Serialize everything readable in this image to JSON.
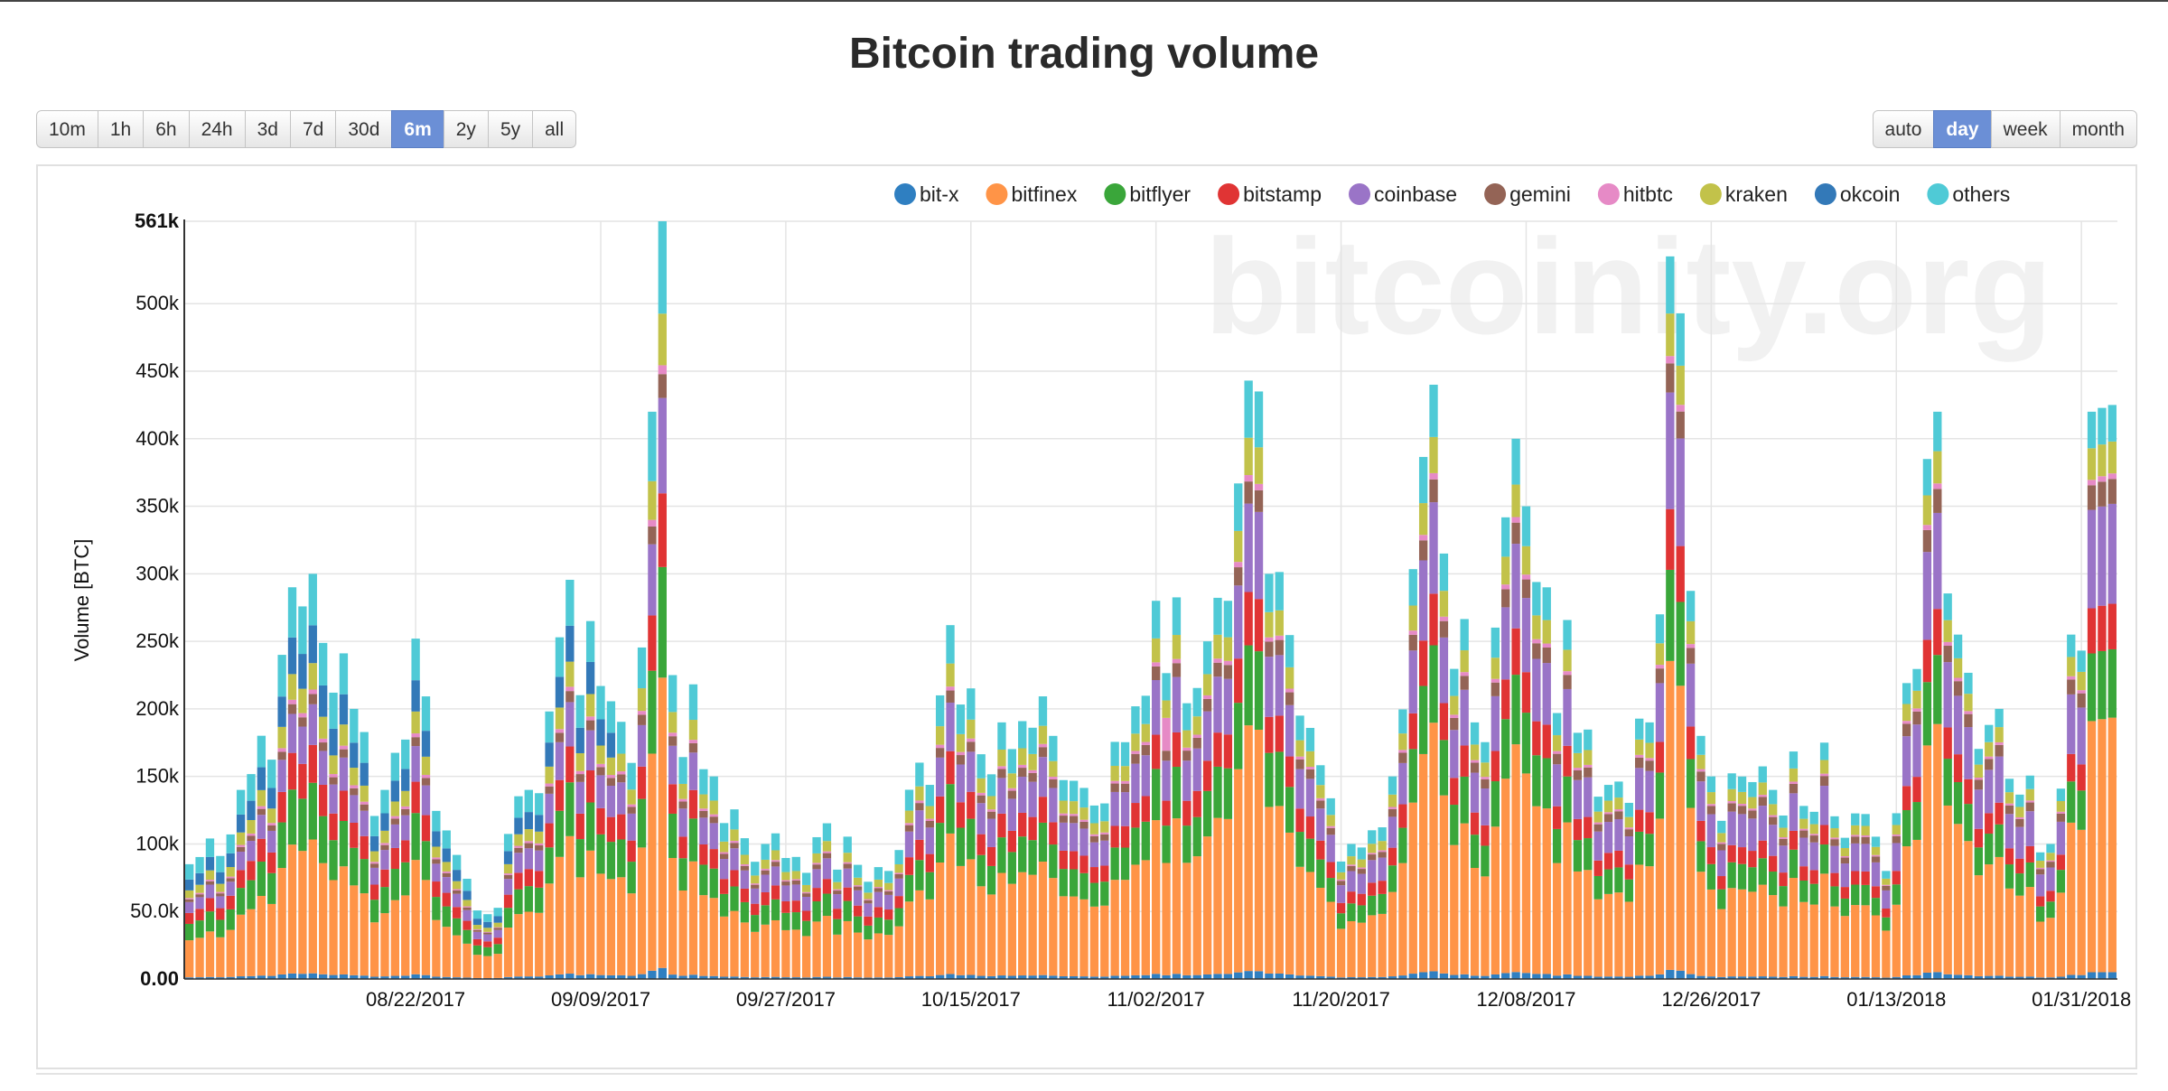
{
  "page": {
    "title": "Bitcoin trading volume"
  },
  "range_buttons": [
    {
      "label": "10m"
    },
    {
      "label": "1h"
    },
    {
      "label": "6h"
    },
    {
      "label": "24h"
    },
    {
      "label": "3d"
    },
    {
      "label": "7d"
    },
    {
      "label": "30d"
    },
    {
      "label": "6m",
      "active": true
    },
    {
      "label": "2y"
    },
    {
      "label": "5y"
    },
    {
      "label": "all"
    }
  ],
  "grouping_buttons": [
    {
      "label": "auto"
    },
    {
      "label": "day",
      "active": true
    },
    {
      "label": "week"
    },
    {
      "label": "month"
    }
  ],
  "watermark": "bitcoinity.org",
  "chart_data": {
    "type": "bar",
    "stacked": true,
    "ylabel": "Volume [BTC]",
    "ylim": [
      0,
      561000
    ],
    "yticks": [
      {
        "value": 0,
        "label": "0.00"
      },
      {
        "value": 50000,
        "label": "50.0k"
      },
      {
        "value": 100000,
        "label": "100k"
      },
      {
        "value": 150000,
        "label": "150k"
      },
      {
        "value": 200000,
        "label": "200k"
      },
      {
        "value": 250000,
        "label": "250k"
      },
      {
        "value": 300000,
        "label": "300k"
      },
      {
        "value": 350000,
        "label": "350k"
      },
      {
        "value": 400000,
        "label": "400k"
      },
      {
        "value": 450000,
        "label": "450k"
      },
      {
        "value": 500000,
        "label": "500k"
      },
      {
        "value": 561000,
        "label": "561k"
      }
    ],
    "x_start": "2017-07-31",
    "x_end": "2018-02-03",
    "xticks": [
      {
        "date": "2017-08-22",
        "label": "08/22/2017"
      },
      {
        "date": "2017-09-09",
        "label": "09/09/2017"
      },
      {
        "date": "2017-09-27",
        "label": "09/27/2017"
      },
      {
        "date": "2017-10-15",
        "label": "10/15/2017"
      },
      {
        "date": "2017-11-02",
        "label": "11/02/2017"
      },
      {
        "date": "2017-11-20",
        "label": "11/20/2017"
      },
      {
        "date": "2017-12-08",
        "label": "12/08/2017"
      },
      {
        "date": "2017-12-26",
        "label": "12/26/2017"
      },
      {
        "date": "2018-01-13",
        "label": "01/13/2018"
      },
      {
        "date": "2018-01-31",
        "label": "01/31/2018"
      }
    ],
    "legend_position": "top-right",
    "series": [
      {
        "name": "bit-x",
        "color": "#2f7fc1"
      },
      {
        "name": "bitfinex",
        "color": "#ff9447"
      },
      {
        "name": "bitflyer",
        "color": "#3aa63a"
      },
      {
        "name": "bitstamp",
        "color": "#e03434"
      },
      {
        "name": "coinbase",
        "color": "#9a74c7"
      },
      {
        "name": "gemini",
        "color": "#946456"
      },
      {
        "name": "hitbtc",
        "color": "#e68ac6"
      },
      {
        "name": "kraken",
        "color": "#c2c24a"
      },
      {
        "name": "okcoin",
        "color": "#3379b8"
      },
      {
        "name": "others",
        "color": "#4fcad6"
      }
    ],
    "daily_totals": [
      {
        "date": "2017-07-31",
        "total": 85000
      },
      {
        "date": "2017-08-05",
        "total": 140000
      },
      {
        "date": "2017-08-09",
        "total": 240000
      },
      {
        "date": "2017-08-12",
        "total": 300000
      },
      {
        "date": "2017-08-16",
        "total": 200000
      },
      {
        "date": "2017-08-19",
        "total": 140000
      },
      {
        "date": "2017-08-22",
        "total": 252000
      },
      {
        "date": "2017-08-25",
        "total": 110000
      },
      {
        "date": "2017-08-29",
        "total": 48000
      },
      {
        "date": "2017-09-02",
        "total": 140000
      },
      {
        "date": "2017-09-05",
        "total": 253000
      },
      {
        "date": "2017-09-08",
        "total": 265000
      },
      {
        "date": "2017-09-12",
        "total": 160000
      },
      {
        "date": "2017-09-14",
        "total": 420000
      },
      {
        "date": "2017-09-15",
        "total": 561000
      },
      {
        "date": "2017-09-16",
        "total": 225000
      },
      {
        "date": "2017-09-20",
        "total": 150000
      },
      {
        "date": "2017-09-25",
        "total": 100000
      },
      {
        "date": "2017-09-30",
        "total": 105000
      },
      {
        "date": "2017-10-07",
        "total": 80000
      },
      {
        "date": "2017-10-12",
        "total": 210000
      },
      {
        "date": "2017-10-13",
        "total": 262000
      },
      {
        "date": "2017-10-18",
        "total": 190000
      },
      {
        "date": "2017-10-23",
        "total": 180000
      },
      {
        "date": "2017-10-28",
        "total": 130000
      },
      {
        "date": "2017-11-02",
        "total": 280000
      },
      {
        "date": "2017-11-07",
        "total": 250000
      },
      {
        "date": "2017-11-09",
        "total": 280000
      },
      {
        "date": "2017-11-12",
        "total": 435000
      },
      {
        "date": "2017-11-13",
        "total": 300000
      },
      {
        "date": "2017-11-16",
        "total": 195000
      },
      {
        "date": "2017-11-21",
        "total": 100000
      },
      {
        "date": "2017-11-25",
        "total": 150000
      },
      {
        "date": "2017-11-29",
        "total": 440000
      },
      {
        "date": "2017-11-30",
        "total": 315000
      },
      {
        "date": "2017-12-03",
        "total": 190000
      },
      {
        "date": "2017-12-07",
        "total": 400000
      },
      {
        "date": "2017-12-08",
        "total": 350000
      },
      {
        "date": "2017-12-10",
        "total": 290000
      },
      {
        "date": "2017-12-15",
        "total": 135000
      },
      {
        "date": "2017-12-20",
        "total": 190000
      },
      {
        "date": "2017-12-21",
        "total": 270000
      },
      {
        "date": "2017-12-22",
        "total": 535000
      },
      {
        "date": "2017-12-26",
        "total": 150000
      },
      {
        "date": "2018-01-01",
        "total": 140000
      },
      {
        "date": "2018-01-06",
        "total": 175000
      },
      {
        "date": "2018-01-12",
        "total": 80000
      },
      {
        "date": "2018-01-16",
        "total": 385000
      },
      {
        "date": "2018-01-17",
        "total": 420000
      },
      {
        "date": "2018-01-19",
        "total": 255000
      },
      {
        "date": "2018-01-23",
        "total": 200000
      },
      {
        "date": "2018-01-28",
        "total": 100000
      },
      {
        "date": "2018-01-30",
        "total": 255000
      },
      {
        "date": "2018-02-01",
        "total": 420000
      },
      {
        "date": "2018-02-03",
        "total": 425000
      }
    ]
  }
}
